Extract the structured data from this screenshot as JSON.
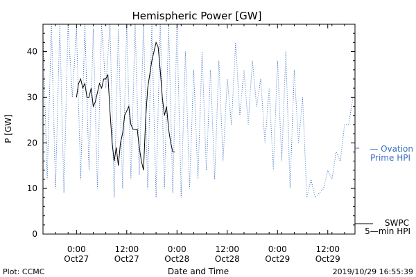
{
  "chart_data": {
    "type": "line",
    "title": "Hemispheric Power [GW]",
    "ylabel": "P [GW]",
    "xlabel": "Date and Time",
    "ylim": [
      0,
      46
    ],
    "xlim": [
      "2019-10-26 16:00",
      "2019-10-29 18:30"
    ],
    "y_ticks": [
      0,
      10,
      20,
      30,
      40
    ],
    "x_ticks": [
      {
        "time": "0:00",
        "date": "Oct27",
        "at": "2019-10-27 00:00"
      },
      {
        "time": "12:00",
        "date": "Oct27",
        "at": "2019-10-27 12:00"
      },
      {
        "time": "0:00",
        "date": "Oct28",
        "at": "2019-10-28 00:00"
      },
      {
        "time": "12:00",
        "date": "Oct28",
        "at": "2019-10-28 12:00"
      },
      {
        "time": "0:00",
        "date": "Oct29",
        "at": "2019-10-29 00:00"
      },
      {
        "time": "12:00",
        "date": "Oct29",
        "at": "2019-10-29 12:00"
      }
    ],
    "series": [
      {
        "name": "Ovation Prime HPI",
        "legend_lines": [
          "— Ovation",
          "Prime HPI"
        ],
        "color": "#3a6fc4",
        "style": "dotted",
        "x": [
          "2019-10-26 16:00",
          "2019-10-26 17:00",
          "2019-10-26 18:00",
          "2019-10-26 19:00",
          "2019-10-26 20:00",
          "2019-10-26 21:00",
          "2019-10-26 22:00",
          "2019-10-26 23:00",
          "2019-10-27 00:00",
          "2019-10-27 01:00",
          "2019-10-27 02:00",
          "2019-10-27 03:00",
          "2019-10-27 04:00",
          "2019-10-27 05:00",
          "2019-10-27 06:00",
          "2019-10-27 07:00",
          "2019-10-27 08:00",
          "2019-10-27 09:00",
          "2019-10-27 10:00",
          "2019-10-27 11:00",
          "2019-10-27 12:00",
          "2019-10-27 13:00",
          "2019-10-27 14:00",
          "2019-10-27 15:00",
          "2019-10-27 16:00",
          "2019-10-27 17:00",
          "2019-10-27 18:00",
          "2019-10-27 19:00",
          "2019-10-27 20:00",
          "2019-10-27 21:00",
          "2019-10-27 22:00",
          "2019-10-27 23:00",
          "2019-10-28 00:00",
          "2019-10-28 01:00",
          "2019-10-28 02:00",
          "2019-10-28 03:00",
          "2019-10-28 04:00",
          "2019-10-28 05:00",
          "2019-10-28 06:00",
          "2019-10-28 07:00",
          "2019-10-28 08:00",
          "2019-10-28 09:00",
          "2019-10-28 10:00",
          "2019-10-28 11:00",
          "2019-10-28 12:00",
          "2019-10-28 13:00",
          "2019-10-28 14:00",
          "2019-10-28 15:00",
          "2019-10-28 16:00",
          "2019-10-28 17:00",
          "2019-10-28 18:00",
          "2019-10-28 19:00",
          "2019-10-28 20:00",
          "2019-10-28 21:00",
          "2019-10-28 22:00",
          "2019-10-28 23:00",
          "2019-10-29 00:00",
          "2019-10-29 01:00",
          "2019-10-29 02:00",
          "2019-10-29 03:00",
          "2019-10-29 04:00",
          "2019-10-29 05:00",
          "2019-10-29 06:00",
          "2019-10-29 07:00",
          "2019-10-29 08:00",
          "2019-10-29 09:00",
          "2019-10-29 10:00",
          "2019-10-29 11:00",
          "2019-10-29 12:00",
          "2019-10-29 13:00",
          "2019-10-29 14:00",
          "2019-10-29 15:00",
          "2019-10-29 16:00",
          "2019-10-29 17:00",
          "2019-10-29 18:00"
        ],
        "values": [
          44,
          12,
          46,
          10,
          46,
          9,
          46,
          30,
          45,
          12,
          46,
          14,
          45,
          10,
          46,
          32,
          46,
          8,
          45,
          10,
          46,
          12,
          46,
          13,
          46,
          10,
          46,
          8,
          46,
          10,
          46,
          9,
          46,
          8,
          40,
          10,
          36,
          12,
          40,
          14,
          36,
          12,
          38,
          16,
          34,
          24,
          42,
          26,
          36,
          24,
          38,
          28,
          34,
          20,
          32,
          14,
          38,
          16,
          40,
          10,
          36,
          20,
          30,
          8,
          12,
          8,
          9,
          10,
          14,
          12,
          18,
          16,
          24,
          24,
          30
        ]
      },
      {
        "name": "SWPC 5-min HPI",
        "legend_lines": [
          "SWPC",
          "5—min HPI"
        ],
        "color": "#000000",
        "style": "solid",
        "x": [
          "2019-10-27 00:00",
          "2019-10-27 00:30",
          "2019-10-27 01:00",
          "2019-10-27 01:30",
          "2019-10-27 02:00",
          "2019-10-27 02:30",
          "2019-10-27 03:00",
          "2019-10-27 03:30",
          "2019-10-27 04:00",
          "2019-10-27 04:30",
          "2019-10-27 05:00",
          "2019-10-27 05:30",
          "2019-10-27 06:00",
          "2019-10-27 06:30",
          "2019-10-27 07:00",
          "2019-10-27 07:30",
          "2019-10-27 08:00",
          "2019-10-27 08:30",
          "2019-10-27 09:00",
          "2019-10-27 09:30",
          "2019-10-27 10:00",
          "2019-10-27 10:30",
          "2019-10-27 11:00",
          "2019-10-27 11:30",
          "2019-10-27 12:00",
          "2019-10-27 12:30",
          "2019-10-27 13:00",
          "2019-10-27 13:30",
          "2019-10-27 14:00",
          "2019-10-27 14:30",
          "2019-10-27 15:00",
          "2019-10-27 15:30",
          "2019-10-27 16:00",
          "2019-10-27 16:30",
          "2019-10-27 17:00",
          "2019-10-27 17:30",
          "2019-10-27 18:00",
          "2019-10-27 18:30",
          "2019-10-27 19:00",
          "2019-10-27 19:30",
          "2019-10-27 20:00",
          "2019-10-27 20:30",
          "2019-10-27 21:00",
          "2019-10-27 21:30",
          "2019-10-27 22:00",
          "2019-10-27 22:30",
          "2019-10-27 23:00",
          "2019-10-27 23:30"
        ],
        "values": [
          30,
          33,
          34,
          32,
          33,
          30,
          30,
          32,
          28,
          29,
          31,
          33,
          32,
          34,
          34,
          35,
          27,
          20,
          16,
          19,
          15,
          20,
          22,
          26,
          27,
          28,
          24,
          23,
          23,
          23,
          19,
          16,
          14,
          25,
          32,
          35,
          38,
          40,
          42,
          41,
          36,
          30,
          26,
          28,
          23,
          20,
          18,
          18
        ]
      }
    ],
    "footer_left": "Plot: CCMC",
    "footer_right": "2019/10/29 16:55:39"
  }
}
